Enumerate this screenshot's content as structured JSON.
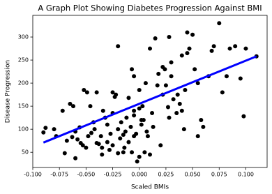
{
  "chart_data": {
    "type": "scatter",
    "title": "A Graph Plot Showing Diabetes Progression Against BMI",
    "x_label": "Scaled BMIs",
    "y_label": "Disease Progression",
    "marker_color": "#000000",
    "x": [
      -0.09,
      -0.088,
      -0.08,
      -0.078,
      -0.072,
      -0.07,
      -0.068,
      -0.065,
      -0.063,
      -0.062,
      -0.06,
      -0.06,
      -0.058,
      -0.056,
      -0.055,
      -0.053,
      -0.052,
      -0.05,
      -0.049,
      -0.048,
      -0.046,
      -0.045,
      -0.043,
      -0.042,
      -0.04,
      -0.04,
      -0.038,
      -0.036,
      -0.035,
      -0.034,
      -0.032,
      -0.03,
      -0.03,
      -0.028,
      -0.027,
      -0.025,
      -0.025,
      -0.023,
      -0.022,
      -0.02,
      -0.02,
      -0.018,
      -0.017,
      -0.015,
      -0.014,
      -0.013,
      -0.012,
      -0.01,
      -0.01,
      -0.008,
      -0.007,
      -0.005,
      -0.005,
      -0.003,
      -0.002,
      0.0,
      0.0,
      0.002,
      0.003,
      0.004,
      0.005,
      0.006,
      0.007,
      0.008,
      0.01,
      0.01,
      0.012,
      0.013,
      -0.007,
      -0.005,
      -0.02,
      -0.025,
      0.015,
      0.017,
      0.018,
      0.02,
      0.022,
      0.022,
      0.024,
      0.025,
      0.027,
      0.028,
      0.028,
      0.03,
      0.03,
      0.032,
      0.035,
      0.036,
      0.038,
      0.04,
      0.04,
      0.042,
      0.043,
      0.045,
      0.045,
      0.047,
      0.05,
      0.052,
      0.055,
      0.055,
      0.058,
      0.06,
      0.065,
      0.068,
      0.07,
      0.075,
      0.078,
      0.082,
      0.085,
      0.09,
      0.095,
      0.098,
      0.1,
      0.11,
      -0.005,
      0.0,
      -0.035,
      -0.015,
      0.002
    ],
    "values": [
      93,
      103,
      100,
      85,
      140,
      48,
      75,
      155,
      83,
      150,
      95,
      37,
      78,
      104,
      70,
      65,
      185,
      60,
      180,
      85,
      150,
      92,
      115,
      100,
      70,
      180,
      68,
      85,
      60,
      140,
      125,
      110,
      72,
      55,
      90,
      135,
      65,
      170,
      175,
      100,
      48,
      80,
      115,
      88,
      60,
      95,
      125,
      168,
      72,
      105,
      50,
      140,
      85,
      90,
      30,
      40,
      185,
      110,
      150,
      120,
      50,
      200,
      95,
      85,
      45,
      275,
      135,
      105,
      230,
      215,
      280,
      180,
      297,
      195,
      220,
      65,
      235,
      175,
      230,
      195,
      148,
      125,
      300,
      245,
      215,
      165,
      135,
      175,
      155,
      140,
      260,
      100,
      185,
      310,
      265,
      275,
      305,
      230,
      85,
      200,
      120,
      105,
      215,
      270,
      280,
      330,
      180,
      215,
      275,
      280,
      210,
      128,
      275,
      258,
      130,
      145,
      45,
      50,
      120
    ],
    "fit_line": {
      "x": [
        -0.09,
        0.11
      ],
      "y": [
        71,
        258
      ],
      "color": "#0000ff"
    },
    "xlim": [
      -0.1,
      0.12
    ],
    "ylim": [
      17,
      347
    ],
    "xticks": [
      {
        "value": -0.1,
        "label": "-0.100"
      },
      {
        "value": -0.075,
        "label": "-0.075"
      },
      {
        "value": -0.05,
        "label": "-0.050"
      },
      {
        "value": -0.025,
        "label": "-0.025"
      },
      {
        "value": 0,
        "label": "0.000"
      },
      {
        "value": 0.025,
        "label": "0.025"
      },
      {
        "value": 0.05,
        "label": "0.050"
      },
      {
        "value": 0.075,
        "label": "0.075"
      },
      {
        "value": 0.1,
        "label": "0.100"
      }
    ],
    "yticks": [
      50,
      100,
      150,
      200,
      250,
      300
    ]
  }
}
